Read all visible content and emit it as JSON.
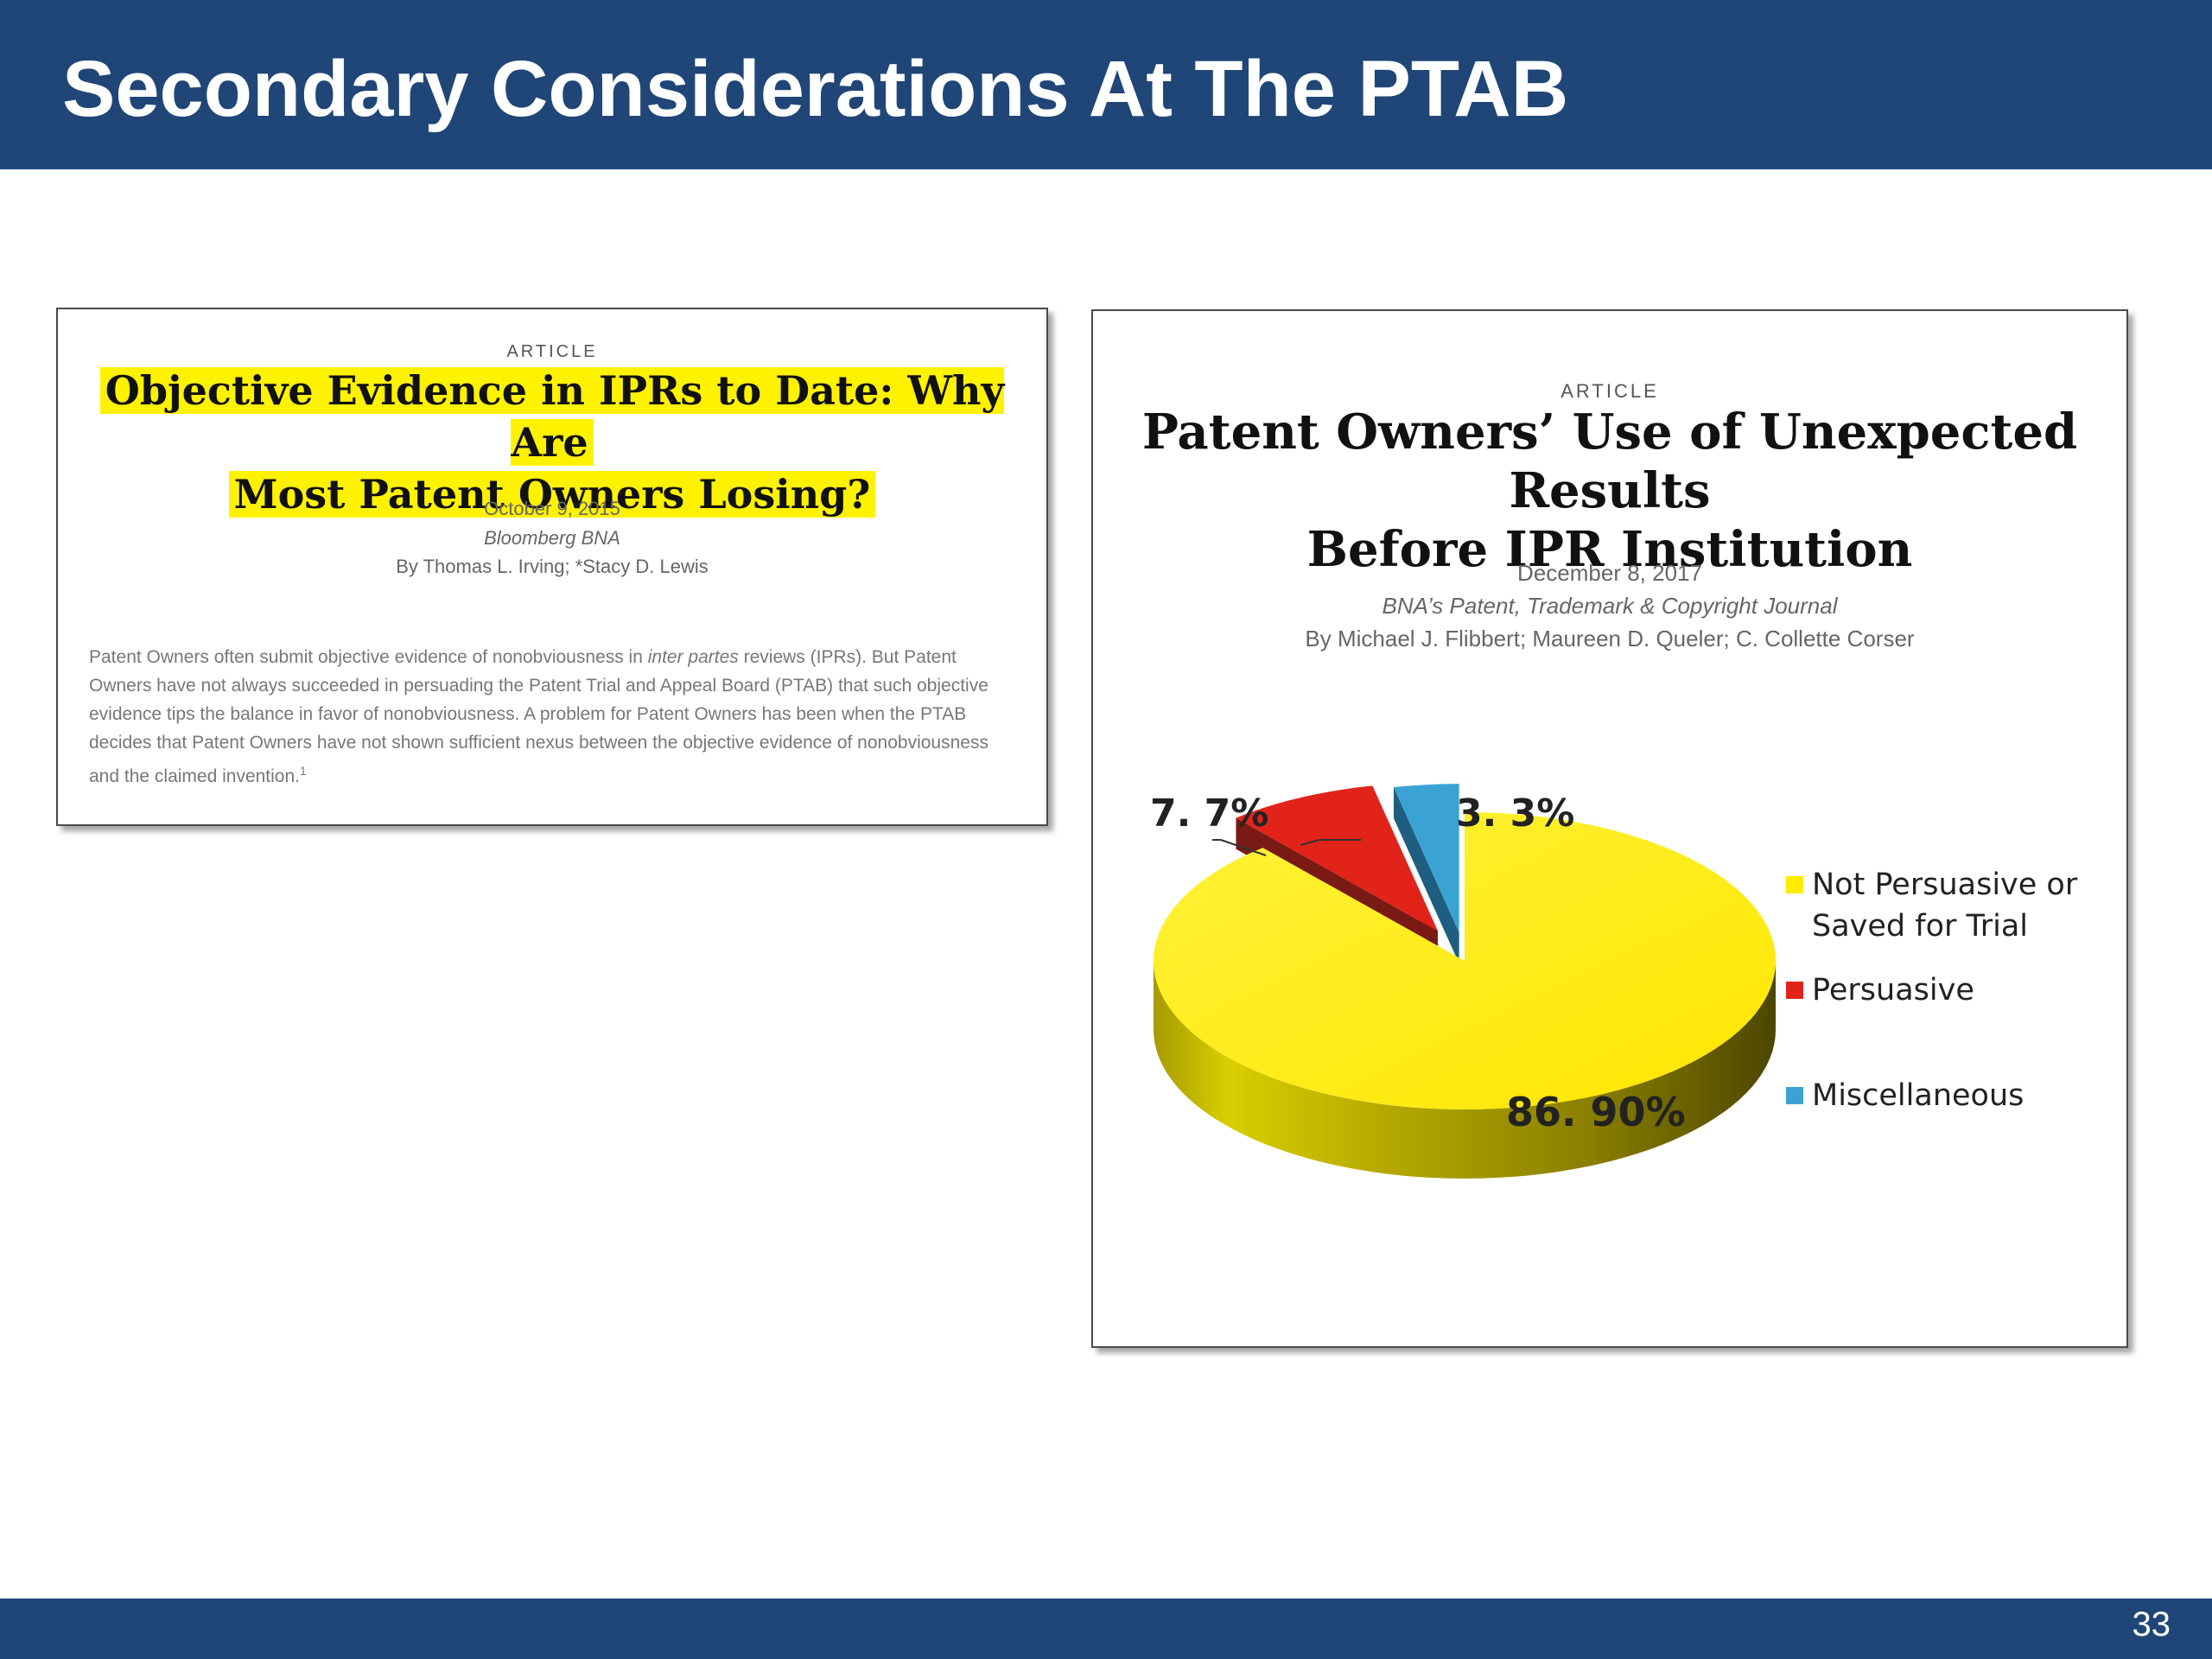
{
  "slide": {
    "title": "Secondary Considerations At The PTAB",
    "page_number": "33"
  },
  "article1": {
    "kicker": "ARTICLE",
    "title_line1": "Objective Evidence in IPRs to Date: Why Are",
    "title_line2": "Most Patent Owners Losing?",
    "date": "October 9, 2015",
    "publication": "Bloomberg BNA",
    "authors": "By Thomas L. Irving; *Stacy D. Lewis",
    "abstract_before_italic": "Patent Owners often submit objective evidence of nonobviousness in ",
    "abstract_italic": "inter partes",
    "abstract_after_italic": " reviews (IPRs). But Patent Owners have not always succeeded in persuading the Patent Trial and Appeal Board (PTAB) that such objective evidence tips the balance in favor of nonobviousness. A problem for Patent Owners has been when the PTAB decides that Patent Owners have not shown sufficient nexus between the objective evidence of nonobviousness and the claimed invention.",
    "footnote_marker": "1",
    "highlight_color": "#fff200"
  },
  "article2": {
    "kicker": "ARTICLE",
    "title_line1": "Patent Owners’ Use of Unexpected Results",
    "title_line2": "Before IPR Institution",
    "date": "December 8, 2017",
    "publication": "BNA’s Patent, Trademark & Copyright Journal",
    "authors": "By Michael J. Flibbert; Maureen D. Queler; C. Collette Corser"
  },
  "chart_data": {
    "type": "pie",
    "style": "3d-exploded",
    "series": [
      {
        "name": "Not Persuasive or Saved for Trial",
        "value": 86.9,
        "label": "86. 90%",
        "color": "#ffec00"
      },
      {
        "name": "Persuasive",
        "value": 7.7,
        "label": "7. 7%",
        "color": "#e2231a"
      },
      {
        "name": "Miscellaneous",
        "value": 3.3,
        "label": "3. 3%",
        "color": "#3aa3d4"
      }
    ],
    "legend": {
      "position": "right",
      "items": [
        {
          "line1": "Not Persuasive or",
          "line2": "Saved for Trial",
          "color": "#ffec00"
        },
        {
          "line1": "Persuasive",
          "color": "#e2231a"
        },
        {
          "line1": "Miscellaneous",
          "color": "#3aa3d4"
        }
      ]
    }
  },
  "theme": {
    "header_color": "#1f4677",
    "footer_color": "#1f4677"
  }
}
